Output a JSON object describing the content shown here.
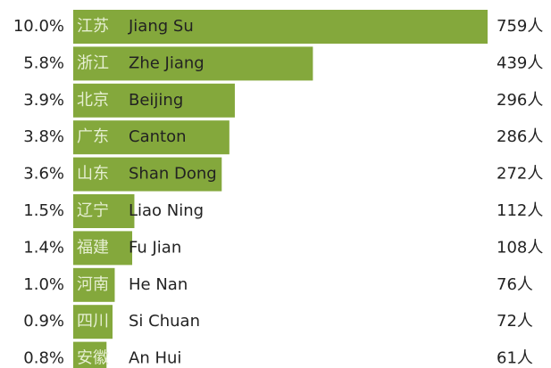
{
  "chart_data": {
    "type": "bar",
    "categories": [
      "Jiang Su",
      "Zhe Jiang",
      "Beijing",
      "Canton",
      "Shan Dong",
      "Liao Ning",
      "Fu Jian",
      "He Nan",
      "Si Chuan",
      "An Hui"
    ],
    "categories_zh": [
      "江苏",
      "浙江",
      "北京",
      "广东",
      "山东",
      "辽宁",
      "福建",
      "河南",
      "四川",
      "安徽"
    ],
    "share_labels": [
      "10.0%",
      "5.8%",
      "3.9%",
      "3.8%",
      "3.6%",
      "1.5%",
      "1.4%",
      "1.0%",
      "0.9%",
      "0.8%"
    ],
    "values": [
      759,
      439,
      296,
      286,
      272,
      112,
      108,
      76,
      72,
      61
    ],
    "value_labels": [
      "759人",
      "439人",
      "296人",
      "286人",
      "272人",
      "112人",
      "108人",
      "76人",
      "72人",
      "61人"
    ],
    "color": "#84a83c",
    "xlim": [
      0,
      759
    ]
  }
}
